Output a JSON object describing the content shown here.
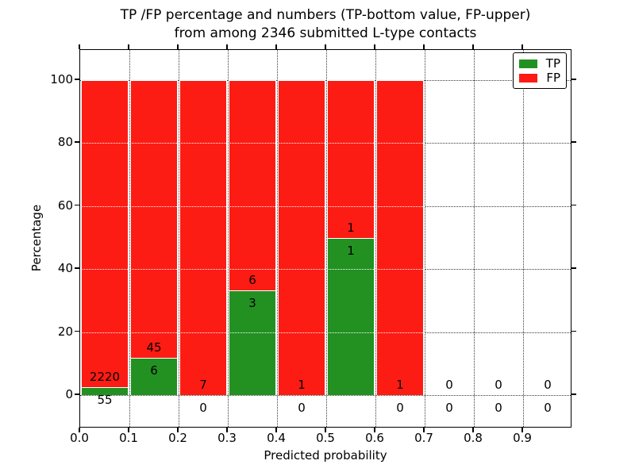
{
  "title": {
    "line1": "TP /FP percentage and numbers (TP-bottom value, FP-upper)",
    "line2": "from among 2346 submitted L-type contacts"
  },
  "x_axis": {
    "label": "Predicted probability",
    "ticks": [
      "0.0",
      "0.1",
      "0.2",
      "0.3",
      "0.4",
      "0.5",
      "0.6",
      "0.7",
      "0.8",
      "0.9"
    ]
  },
  "y_axis": {
    "label": "Percentage",
    "ticks": [
      "0",
      "20",
      "40",
      "60",
      "80",
      "100"
    ]
  },
  "legend": {
    "items": [
      {
        "label": "TP",
        "color": "#229122"
      },
      {
        "label": "FP",
        "color": "#fc1c14"
      }
    ],
    "position": "upper right"
  },
  "colors": {
    "tp_green": "#229122",
    "fp_red": "#fc1c14",
    "grid": "#3a3a3a",
    "spine": "#000000",
    "background": "#ffffff"
  },
  "chart_data": {
    "type": "bar",
    "stacked": true,
    "normalized": "percent of bin total (TP+FP = 100%)",
    "title": "TP /FP percentage and numbers (TP-bottom value, FP-upper) from among 2346 submitted L-type contacts",
    "xlabel": "Predicted probability",
    "ylabel": "Percentage",
    "total_contacts": 2346,
    "bin_edges": [
      0.0,
      0.1,
      0.2,
      0.3,
      0.4,
      0.5,
      0.6,
      0.7,
      0.8,
      0.9,
      1.0
    ],
    "series": [
      {
        "name": "TP",
        "color": "#229122",
        "counts": [
          55,
          6,
          0,
          3,
          0,
          1,
          0,
          0,
          0,
          0
        ],
        "percent": [
          2.42,
          11.76,
          0,
          33.33,
          0,
          50,
          0,
          0,
          0,
          0
        ]
      },
      {
        "name": "FP",
        "color": "#fc1c14",
        "counts": [
          2220,
          45,
          7,
          6,
          1,
          1,
          1,
          0,
          0,
          0
        ],
        "percent": [
          97.58,
          88.24,
          100,
          66.67,
          100,
          50,
          100,
          0,
          0,
          0
        ]
      }
    ],
    "annotation_rule": "FP count printed above TP-bar top, TP count printed below TP-bar top",
    "xlim": [
      0.0,
      1.0
    ],
    "ylim": [
      -11,
      110
    ],
    "yticks": [
      0,
      20,
      40,
      60,
      80,
      100
    ],
    "grid": {
      "linestyle": "dotted",
      "x_interval": 0.1,
      "y_interval": 20
    },
    "legend_position": "upper right"
  }
}
